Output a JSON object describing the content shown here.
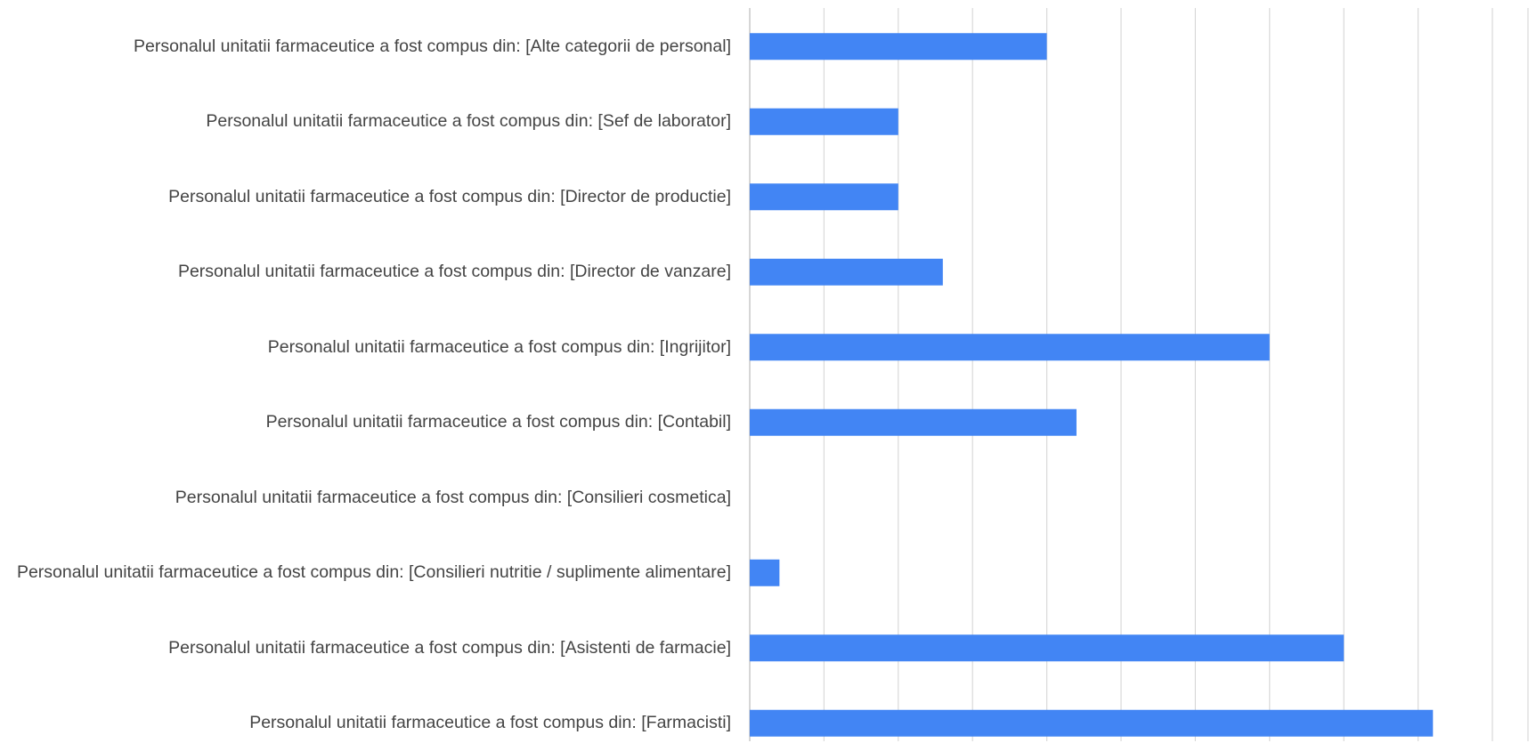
{
  "chart_data": {
    "type": "bar",
    "orientation": "horizontal",
    "categories": [
      "Personalul unitatii farmaceutice a fost compus din: [Alte categorii de personal]",
      "Personalul unitatii farmaceutice a fost compus din: [Sef de laborator]",
      "Personalul unitatii farmaceutice a fost compus din: [Director de productie]",
      "Personalul unitatii farmaceutice a fost compus din: [Director de vanzare]",
      "Personalul unitatii farmaceutice a fost compus din: [Ingrijitor]",
      "Personalul unitatii farmaceutice a fost compus din: [Contabil]",
      "Personalul unitatii farmaceutice a fost compus din: [Consilieri cosmetica]",
      "Personalul unitatii farmaceutice a fost compus din: [Consilieri nutritie / suplimente alimentare]",
      "Personalul unitatii farmaceutice a fost compus din: [Asistenti de farmacie]",
      "Personalul unitatii farmaceutice a fost compus din: [Farmacisti]"
    ],
    "values": [
      4,
      2,
      2,
      2.6,
      7,
      4.4,
      0,
      0.4,
      8,
      9.2
    ],
    "color": "#4285f4",
    "xlim": [
      0,
      10
    ],
    "xticks": [
      0,
      1,
      2,
      3,
      4,
      5,
      6,
      7,
      8,
      9,
      10
    ],
    "grid": true
  }
}
